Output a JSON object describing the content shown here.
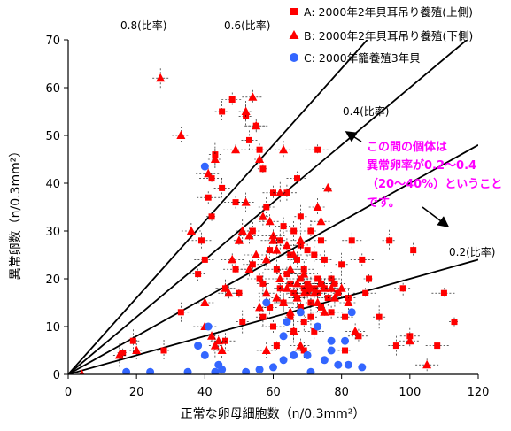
{
  "chart_data": {
    "type": "scatter",
    "xlabel": "正常な卵母細胞数（n/0.3mm²）",
    "ylabel": "異常卵数（n/0.3mm²）",
    "xlim": [
      0,
      120
    ],
    "ylim": [
      0,
      70
    ],
    "x_ticks": [
      "0",
      "20",
      "40",
      "60",
      "80",
      "100",
      "120"
    ],
    "y_ticks": [
      "0",
      "10",
      "20",
      "30",
      "40",
      "50",
      "60",
      "70"
    ],
    "grid": false,
    "legend_position": "top-right",
    "colors": {
      "A": "#ff0000",
      "B": "#ff0000",
      "C": "#3366ff",
      "axis": "#000000",
      "ref_line": "#000000",
      "annotation": "#ff00ff"
    },
    "ratio_lines": [
      {
        "slope": 0.8,
        "label": "0.8(比率)"
      },
      {
        "slope": 0.6,
        "label": "0.6(比率)"
      },
      {
        "slope": 0.4,
        "label": "0.4(比率)"
      },
      {
        "slope": 0.2,
        "label": "0.2(比率)"
      }
    ],
    "annotation": {
      "lines": [
        "この間の個体は",
        "異常卵率が0.2〜0.4",
        "（20〜40%）ということ",
        "です。"
      ]
    },
    "series": [
      {
        "name": "A: 2000年2年貝耳吊り養殖(上側)",
        "marker": "square",
        "points": [
          [
            16,
            4.5
          ],
          [
            19,
            7
          ],
          [
            28,
            5
          ],
          [
            33,
            13
          ],
          [
            38,
            21
          ],
          [
            39,
            28
          ],
          [
            40,
            24
          ],
          [
            41,
            37
          ],
          [
            42,
            41
          ],
          [
            42,
            33
          ],
          [
            43,
            46
          ],
          [
            45,
            55
          ],
          [
            45,
            39
          ],
          [
            46,
            18
          ],
          [
            46,
            7
          ],
          [
            48,
            57.5
          ],
          [
            49,
            36
          ],
          [
            49,
            22
          ],
          [
            50,
            17
          ],
          [
            51,
            11
          ],
          [
            52,
            54
          ],
          [
            53,
            49
          ],
          [
            54,
            30
          ],
          [
            54,
            23
          ],
          [
            55,
            52
          ],
          [
            56,
            47
          ],
          [
            56,
            20
          ],
          [
            57,
            43
          ],
          [
            57,
            19
          ],
          [
            57,
            12
          ],
          [
            58,
            35
          ],
          [
            59,
            14
          ],
          [
            59,
            26
          ],
          [
            60,
            38
          ],
          [
            60,
            10
          ],
          [
            61,
            22
          ],
          [
            61,
            6
          ],
          [
            62,
            18
          ],
          [
            62,
            28
          ],
          [
            63,
            15
          ],
          [
            63,
            31
          ],
          [
            64,
            38
          ],
          [
            64,
            21
          ],
          [
            65,
            25
          ],
          [
            65,
            19
          ],
          [
            65,
            12
          ],
          [
            66,
            17
          ],
          [
            66,
            9
          ],
          [
            66,
            30
          ],
          [
            67,
            16
          ],
          [
            67,
            24
          ],
          [
            67,
            41
          ],
          [
            68,
            20
          ],
          [
            68,
            14
          ],
          [
            68,
            27
          ],
          [
            68,
            33
          ],
          [
            69,
            11
          ],
          [
            69,
            18
          ],
          [
            69,
            5
          ],
          [
            69,
            22
          ],
          [
            70,
            17
          ],
          [
            70,
            26
          ],
          [
            70,
            19
          ],
          [
            71,
            15
          ],
          [
            71,
            12
          ],
          [
            71,
            30
          ],
          [
            72,
            18
          ],
          [
            72,
            25
          ],
          [
            72,
            9
          ],
          [
            73,
            17
          ],
          [
            73,
            20
          ],
          [
            73,
            47
          ],
          [
            74,
            14
          ],
          [
            74,
            19
          ],
          [
            74,
            28
          ],
          [
            75,
            18
          ],
          [
            75,
            24
          ],
          [
            76,
            16
          ],
          [
            77,
            20
          ],
          [
            77,
            13
          ],
          [
            78,
            19
          ],
          [
            79,
            17
          ],
          [
            80,
            23
          ],
          [
            81,
            5
          ],
          [
            81,
            12
          ],
          [
            82,
            16
          ],
          [
            83,
            28
          ],
          [
            85,
            8
          ],
          [
            86,
            24
          ],
          [
            87,
            17
          ],
          [
            88,
            20
          ],
          [
            91,
            12
          ],
          [
            94,
            28
          ],
          [
            96,
            6
          ],
          [
            98,
            18
          ],
          [
            100,
            8
          ],
          [
            101,
            26
          ],
          [
            108,
            6
          ],
          [
            110,
            17
          ],
          [
            113,
            11
          ]
        ]
      },
      {
        "name": "B: 2000年2年貝耳吊り養殖(下側)",
        "marker": "triangle",
        "points": [
          [
            4,
            0
          ],
          [
            15,
            4
          ],
          [
            20,
            5
          ],
          [
            27,
            62
          ],
          [
            33,
            50
          ],
          [
            36,
            30
          ],
          [
            40,
            15
          ],
          [
            40,
            10
          ],
          [
            41,
            42
          ],
          [
            42,
            8
          ],
          [
            43,
            6
          ],
          [
            43,
            45
          ],
          [
            44,
            7
          ],
          [
            45,
            5
          ],
          [
            46,
            18
          ],
          [
            47,
            17
          ],
          [
            48,
            24
          ],
          [
            49,
            47
          ],
          [
            50,
            28
          ],
          [
            51,
            30
          ],
          [
            52,
            55
          ],
          [
            52,
            36
          ],
          [
            53,
            22
          ],
          [
            53,
            29
          ],
          [
            54,
            58
          ],
          [
            55,
            52
          ],
          [
            55,
            25
          ],
          [
            56,
            45
          ],
          [
            56,
            14
          ],
          [
            57,
            33
          ],
          [
            58,
            17
          ],
          [
            58,
            24
          ],
          [
            58,
            5
          ],
          [
            59,
            32
          ],
          [
            60,
            29
          ],
          [
            60,
            28
          ],
          [
            61,
            16
          ],
          [
            61,
            26
          ],
          [
            62,
            38
          ],
          [
            62,
            20
          ],
          [
            63,
            47
          ],
          [
            63,
            15
          ],
          [
            64,
            27
          ],
          [
            64,
            18
          ],
          [
            65,
            22
          ],
          [
            65,
            13
          ],
          [
            66,
            9
          ],
          [
            66,
            25
          ],
          [
            67,
            16
          ],
          [
            67,
            19
          ],
          [
            68,
            28
          ],
          [
            68,
            6
          ],
          [
            69,
            17
          ],
          [
            69,
            21
          ],
          [
            70,
            18
          ],
          [
            71,
            18
          ],
          [
            72,
            17
          ],
          [
            73,
            15
          ],
          [
            73,
            35
          ],
          [
            74,
            19
          ],
          [
            74,
            32
          ],
          [
            75,
            18
          ],
          [
            75,
            13
          ],
          [
            76,
            39
          ],
          [
            77,
            18
          ],
          [
            78,
            16
          ],
          [
            80,
            18
          ],
          [
            82,
            15
          ],
          [
            84,
            9
          ],
          [
            100,
            7
          ],
          [
            105,
            2
          ]
        ]
      },
      {
        "name": "C: 2000年籠養殖3年貝",
        "marker": "circle",
        "points": [
          [
            17,
            0.5
          ],
          [
            24,
            0.5
          ],
          [
            35,
            0.5
          ],
          [
            38,
            6
          ],
          [
            40,
            43.5
          ],
          [
            40,
            4
          ],
          [
            41,
            10
          ],
          [
            43,
            0.5
          ],
          [
            44,
            2
          ],
          [
            45,
            1
          ],
          [
            52,
            0.5
          ],
          [
            56,
            1
          ],
          [
            58,
            15
          ],
          [
            60,
            1.5
          ],
          [
            63,
            3
          ],
          [
            63,
            8
          ],
          [
            64,
            11
          ],
          [
            66,
            4
          ],
          [
            68,
            13
          ],
          [
            70,
            4
          ],
          [
            71,
            0.5
          ],
          [
            73,
            10
          ],
          [
            75,
            3
          ],
          [
            77,
            5
          ],
          [
            77,
            7
          ],
          [
            79,
            2
          ],
          [
            81,
            7
          ],
          [
            82,
            2
          ],
          [
            83,
            13
          ],
          [
            86,
            1.5
          ]
        ]
      }
    ]
  }
}
